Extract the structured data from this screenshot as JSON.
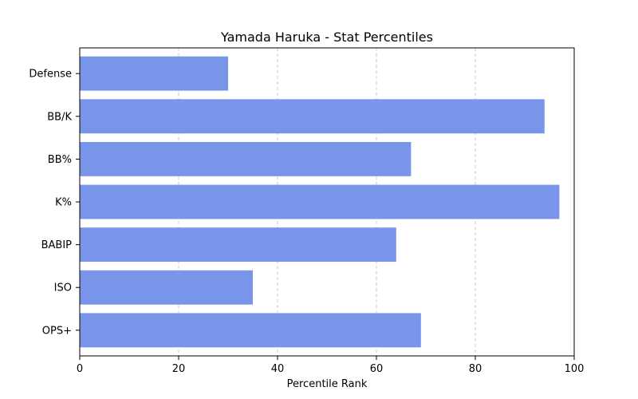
{
  "chart_data": {
    "type": "bar",
    "orientation": "horizontal",
    "title": "Yamada Haruka - Stat Percentiles",
    "xlabel": "Percentile Rank",
    "ylabel": "",
    "xlim": [
      0,
      100
    ],
    "xticks": [
      0,
      20,
      40,
      60,
      80,
      100
    ],
    "grid": "x, dashed",
    "bar_color": "#7895EA",
    "categories": [
      "OPS+",
      "ISO",
      "BABIP",
      "K%",
      "BB%",
      "BB/K",
      "Defense"
    ],
    "values": [
      69,
      35,
      64,
      97,
      67,
      94,
      30
    ]
  }
}
